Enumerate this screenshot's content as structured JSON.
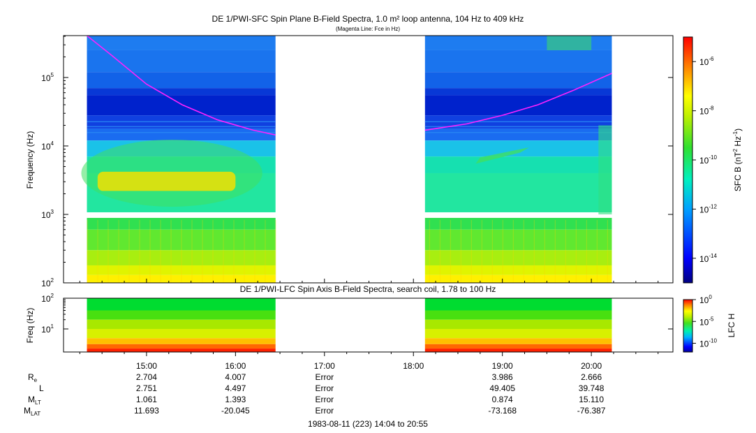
{
  "chart_data": [
    {
      "type": "heatmap",
      "title": "DE 1/PWI-SFC  Spin Plane B-Field Spectra, 1.0 m² loop antenna, 104 Hz to 409 kHz",
      "subtitle": "(Magenta Line: Fce in Hz)",
      "ylabel": "Frequency (Hz)",
      "yscale": "log",
      "ylim": [
        100,
        409000
      ],
      "yticks": [
        100,
        1000,
        10000,
        100000
      ],
      "ytick_labels": [
        {
          "base": "10",
          "exp": "2"
        },
        {
          "base": "10",
          "exp": "3"
        },
        {
          "base": "10",
          "exp": "4"
        },
        {
          "base": "10",
          "exp": "5"
        }
      ],
      "xlim_hours": [
        14.067,
        20.917
      ],
      "data_intervals_hours": [
        [
          14.33,
          16.45
        ],
        [
          18.13,
          20.23
        ]
      ],
      "colorbar": {
        "label": "SFC B (nT",
        "label_sup1": "2",
        "label_mid": " Hz",
        "label_sup2": "-1",
        "label_end": ")",
        "scale": "log",
        "range_exp": [
          -15,
          -5
        ],
        "tick_exps": [
          -6,
          -8,
          -10,
          -12,
          -14
        ],
        "tick_labels": [
          {
            "exp": "-6"
          },
          {
            "exp": "-8"
          },
          {
            "exp": "-10"
          },
          {
            "exp": "-12"
          },
          {
            "exp": "-14"
          }
        ]
      },
      "fce_line": {
        "color": "#ff22ff",
        "segment1": {
          "hours": [
            14.33,
            14.6,
            15.0,
            15.4,
            15.8,
            16.2,
            16.45
          ],
          "freq_hz": [
            409000,
            215000,
            80000,
            40000,
            24000,
            17000,
            14500
          ]
        },
        "segment2": {
          "hours": [
            18.13,
            18.6,
            19.0,
            19.4,
            19.8,
            20.23
          ],
          "freq_hz": [
            17000,
            21000,
            28000,
            40000,
            65000,
            115000
          ]
        }
      }
    },
    {
      "type": "heatmap",
      "title": "DE 1/PWI-LFC  Spin Axis B-Field Spectra, search coil, 1.78 to 100 Hz",
      "ylabel": "Freq (Hz)",
      "yscale": "log",
      "ylim": [
        1.78,
        100
      ],
      "yticks": [
        10,
        100
      ],
      "ytick_labels": [
        {
          "base": "10",
          "exp": "1"
        },
        {
          "base": "10",
          "exp": "2"
        }
      ],
      "colorbar": {
        "label": "LFC H",
        "scale": "log",
        "range_exp": [
          -12,
          0
        ],
        "tick_exps": [
          0,
          -5,
          -10
        ],
        "tick_labels": [
          {
            "base": "10",
            "exp": "0"
          },
          {
            "base": "10",
            "exp": "-5"
          },
          {
            "base": "10",
            "exp": "-10"
          }
        ]
      }
    }
  ],
  "x_axis": {
    "tick_hours": [
      15,
      16,
      17,
      18,
      19,
      20
    ],
    "tick_labels": [
      "15:00",
      "16:00",
      "17:00",
      "18:00",
      "19:00",
      "20:00"
    ],
    "minor_step_hours": 0.25
  },
  "ephemeris": {
    "rows": [
      {
        "label": "R",
        "sub": "e",
        "values": [
          "2.704",
          "4.007",
          "Error",
          "",
          "3.986",
          "2.666"
        ]
      },
      {
        "label": "L",
        "sub": "",
        "values": [
          "2.751",
          "4.497",
          "Error",
          "",
          "49.405",
          "39.748"
        ]
      },
      {
        "label": "M",
        "sub": "LT",
        "values": [
          "1.061",
          "1.393",
          "Error",
          "",
          "0.874",
          "15.110"
        ]
      },
      {
        "label": "M",
        "sub": "LAT",
        "values": [
          "11.693",
          "-20.045",
          "Error",
          "",
          "-73.168",
          "-76.387"
        ]
      }
    ]
  },
  "footer": "1983-08-11 (223) 14:04 to 20:55"
}
